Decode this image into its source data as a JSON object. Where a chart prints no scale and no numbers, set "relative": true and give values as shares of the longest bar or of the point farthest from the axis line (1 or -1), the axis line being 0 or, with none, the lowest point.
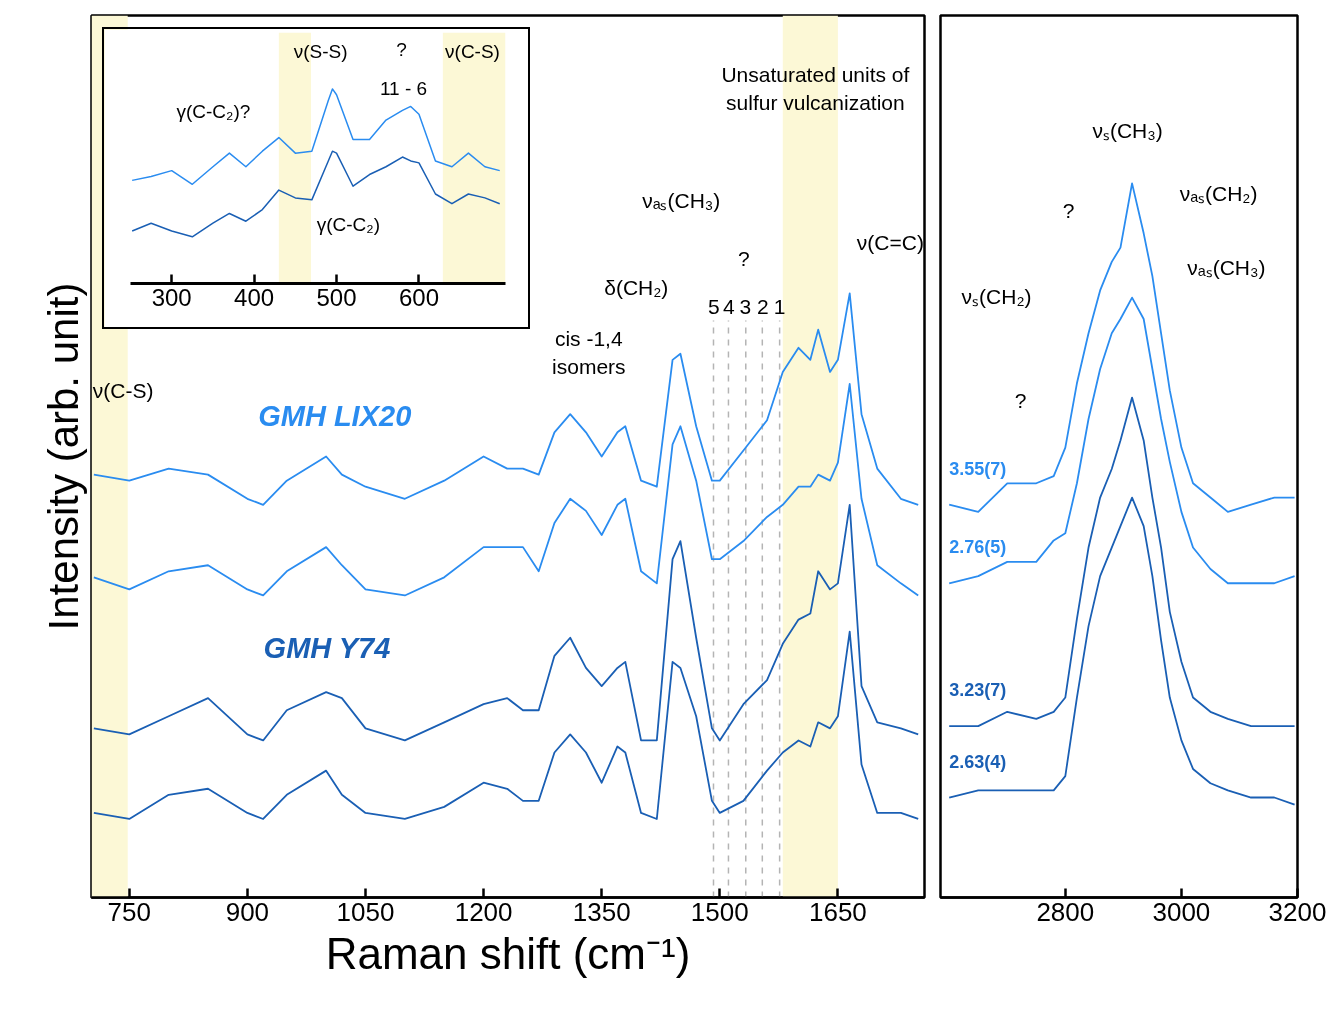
{
  "chart_data": [
    {
      "type": "line",
      "relative": true,
      "ylabel": "Intensity (arb. unit)",
      "xlabel": "Raman shift (cm⁻¹)",
      "x": [
        705,
        750,
        800,
        850,
        900,
        920,
        950,
        1000,
        1020,
        1050,
        1100,
        1150,
        1200,
        1230,
        1250,
        1270,
        1290,
        1310,
        1330,
        1350,
        1370,
        1380,
        1400,
        1420,
        1440,
        1450,
        1470,
        1490,
        1500,
        1530,
        1560,
        1580,
        1600,
        1615,
        1625,
        1640,
        1650,
        1665,
        1680,
        1700,
        1730,
        1752
      ],
      "xlim": [
        702,
        1760
      ],
      "xticks": [
        750,
        900,
        1050,
        1200,
        1350,
        1500,
        1650
      ],
      "series": [
        {
          "color": "#2a8cf0",
          "values": [
            0.7,
            0.69,
            0.71,
            0.7,
            0.66,
            0.65,
            0.69,
            0.73,
            0.7,
            0.68,
            0.66,
            0.69,
            0.73,
            0.71,
            0.71,
            0.7,
            0.77,
            0.8,
            0.77,
            0.73,
            0.77,
            0.78,
            0.69,
            0.68,
            0.89,
            0.9,
            0.78,
            0.69,
            0.69,
            0.74,
            0.79,
            0.87,
            0.91,
            0.89,
            0.94,
            0.87,
            0.89,
            1.0,
            0.8,
            0.71,
            0.66,
            0.65
          ]
        },
        {
          "color": "#2a8cf0",
          "values": [
            0.53,
            0.51,
            0.54,
            0.55,
            0.51,
            0.5,
            0.54,
            0.58,
            0.55,
            0.51,
            0.5,
            0.53,
            0.58,
            0.58,
            0.58,
            0.54,
            0.62,
            0.66,
            0.64,
            0.6,
            0.65,
            0.66,
            0.54,
            0.52,
            0.75,
            0.78,
            0.69,
            0.56,
            0.56,
            0.59,
            0.63,
            0.65,
            0.68,
            0.68,
            0.7,
            0.69,
            0.72,
            0.85,
            0.66,
            0.55,
            0.52,
            0.5
          ]
        },
        {
          "color": "#1a5fb4",
          "values": [
            0.28,
            0.27,
            0.3,
            0.33,
            0.27,
            0.26,
            0.31,
            0.34,
            0.33,
            0.28,
            0.26,
            0.29,
            0.32,
            0.33,
            0.31,
            0.31,
            0.4,
            0.43,
            0.38,
            0.35,
            0.38,
            0.39,
            0.26,
            0.26,
            0.56,
            0.59,
            0.43,
            0.28,
            0.26,
            0.32,
            0.36,
            0.42,
            0.46,
            0.47,
            0.54,
            0.51,
            0.52,
            0.65,
            0.35,
            0.29,
            0.28,
            0.27
          ]
        },
        {
          "color": "#1a5fb4",
          "values": [
            0.14,
            0.13,
            0.17,
            0.18,
            0.14,
            0.13,
            0.17,
            0.21,
            0.17,
            0.14,
            0.13,
            0.15,
            0.19,
            0.18,
            0.16,
            0.16,
            0.24,
            0.27,
            0.24,
            0.19,
            0.25,
            0.24,
            0.14,
            0.13,
            0.39,
            0.38,
            0.3,
            0.16,
            0.14,
            0.16,
            0.21,
            0.24,
            0.26,
            0.25,
            0.29,
            0.28,
            0.3,
            0.44,
            0.22,
            0.14,
            0.14,
            0.13
          ]
        }
      ],
      "bands": [
        {
          "axis": "x",
          "from": 702,
          "to": 748,
          "color": "#fcf8d6"
        },
        {
          "axis": "x",
          "from": 1580,
          "to": 1650,
          "color": "#fcf8d6"
        }
      ],
      "ref_lines": [
        {
          "axis": "x",
          "value": 1492,
          "color": "#b4b4b4",
          "line_style": "dashed"
        },
        {
          "axis": "x",
          "value": 1511,
          "color": "#b4b4b4",
          "line_style": "dashed"
        },
        {
          "axis": "x",
          "value": 1533,
          "color": "#b4b4b4",
          "line_style": "dashed"
        },
        {
          "axis": "x",
          "value": 1554,
          "color": "#b4b4b4",
          "line_style": "dashed"
        },
        {
          "axis": "x",
          "value": 1576,
          "color": "#b4b4b4",
          "line_style": "dashed"
        }
      ],
      "annotations": [
        "ν(C-S)",
        "GMH LIX20",
        "GMH Y74",
        "cis -1,4\nisomers",
        "δ(CH₂)",
        "νₐₛ(CH₃)",
        "?",
        "ν(C=C)",
        "Unsaturated units of\nsulfur vulcanization",
        "5",
        "4",
        "3",
        "2",
        "1"
      ]
    },
    {
      "type": "line",
      "relative": true,
      "x": [
        2600,
        2650,
        2700,
        2750,
        2780,
        2800,
        2820,
        2840,
        2860,
        2880,
        2895,
        2915,
        2935,
        2950,
        2965,
        2980,
        3000,
        3020,
        3050,
        3080,
        3120,
        3160,
        3195
      ],
      "xlim": [
        2585,
        3200
      ],
      "xticks": [
        2800,
        3000,
        3200
      ],
      "series": [
        {
          "name": "3.55(7)",
          "color": "#2a8cf0",
          "values": [
            0.55,
            0.54,
            0.58,
            0.58,
            0.59,
            0.63,
            0.72,
            0.79,
            0.85,
            0.89,
            0.91,
            1.0,
            0.93,
            0.87,
            0.79,
            0.71,
            0.63,
            0.58,
            0.56,
            0.54,
            0.55,
            0.56,
            0.56
          ]
        },
        {
          "name": "2.76(5)",
          "color": "#2a8cf0",
          "values": [
            0.44,
            0.45,
            0.47,
            0.47,
            0.5,
            0.51,
            0.58,
            0.67,
            0.74,
            0.79,
            0.81,
            0.84,
            0.81,
            0.74,
            0.67,
            0.61,
            0.54,
            0.49,
            0.46,
            0.44,
            0.44,
            0.44,
            0.45
          ]
        },
        {
          "name": "3.23(7)",
          "color": "#1a5fb4",
          "values": [
            0.24,
            0.24,
            0.26,
            0.25,
            0.26,
            0.28,
            0.39,
            0.49,
            0.56,
            0.6,
            0.64,
            0.7,
            0.64,
            0.56,
            0.49,
            0.4,
            0.33,
            0.28,
            0.26,
            0.25,
            0.24,
            0.24,
            0.24
          ]
        },
        {
          "name": "2.63(4)",
          "color": "#1a5fb4",
          "values": [
            0.14,
            0.15,
            0.15,
            0.15,
            0.15,
            0.17,
            0.28,
            0.38,
            0.45,
            0.49,
            0.52,
            0.56,
            0.52,
            0.45,
            0.36,
            0.28,
            0.22,
            0.18,
            0.16,
            0.15,
            0.14,
            0.14,
            0.13
          ]
        }
      ],
      "annotations": [
        "νₛ(CH₃)",
        "?",
        "νₐₛ(CH₂)",
        "νₛ(CH₂)",
        "νₐₛ(CH₃)",
        "?"
      ]
    },
    {
      "type": "line",
      "relative": true,
      "x": [
        252,
        275,
        300,
        325,
        350,
        370,
        390,
        410,
        430,
        450,
        470,
        490,
        495,
        500,
        520,
        540,
        560,
        580,
        590,
        600,
        620,
        640,
        660,
        680,
        698
      ],
      "xlim": [
        250,
        705
      ],
      "xticks": [
        300,
        400,
        500,
        600
      ],
      "series": [
        {
          "color": "#2a8cf0",
          "values": [
            0.53,
            0.55,
            0.58,
            0.51,
            0.6,
            0.67,
            0.6,
            0.68,
            0.75,
            0.67,
            0.68,
            0.94,
            1.0,
            0.97,
            0.74,
            0.74,
            0.84,
            0.89,
            0.91,
            0.87,
            0.63,
            0.6,
            0.67,
            0.6,
            0.58
          ]
        },
        {
          "color": "#1a5fb4",
          "values": [
            0.27,
            0.31,
            0.27,
            0.24,
            0.31,
            0.36,
            0.32,
            0.38,
            0.48,
            0.44,
            0.43,
            0.63,
            0.68,
            0.67,
            0.5,
            0.56,
            0.6,
            0.65,
            0.63,
            0.62,
            0.46,
            0.41,
            0.46,
            0.44,
            0.41
          ]
        }
      ],
      "bands": [
        {
          "axis": "x",
          "from": 430,
          "to": 469,
          "color": "#fcf8d6"
        },
        {
          "axis": "x",
          "from": 629,
          "to": 705,
          "color": "#fcf8d6"
        }
      ],
      "annotations": [
        "ν(S-S)",
        "?",
        "ν(C-S)",
        "11 - 6",
        "γ(C-C₂)?",
        "γ(C-C₂)"
      ]
    }
  ]
}
